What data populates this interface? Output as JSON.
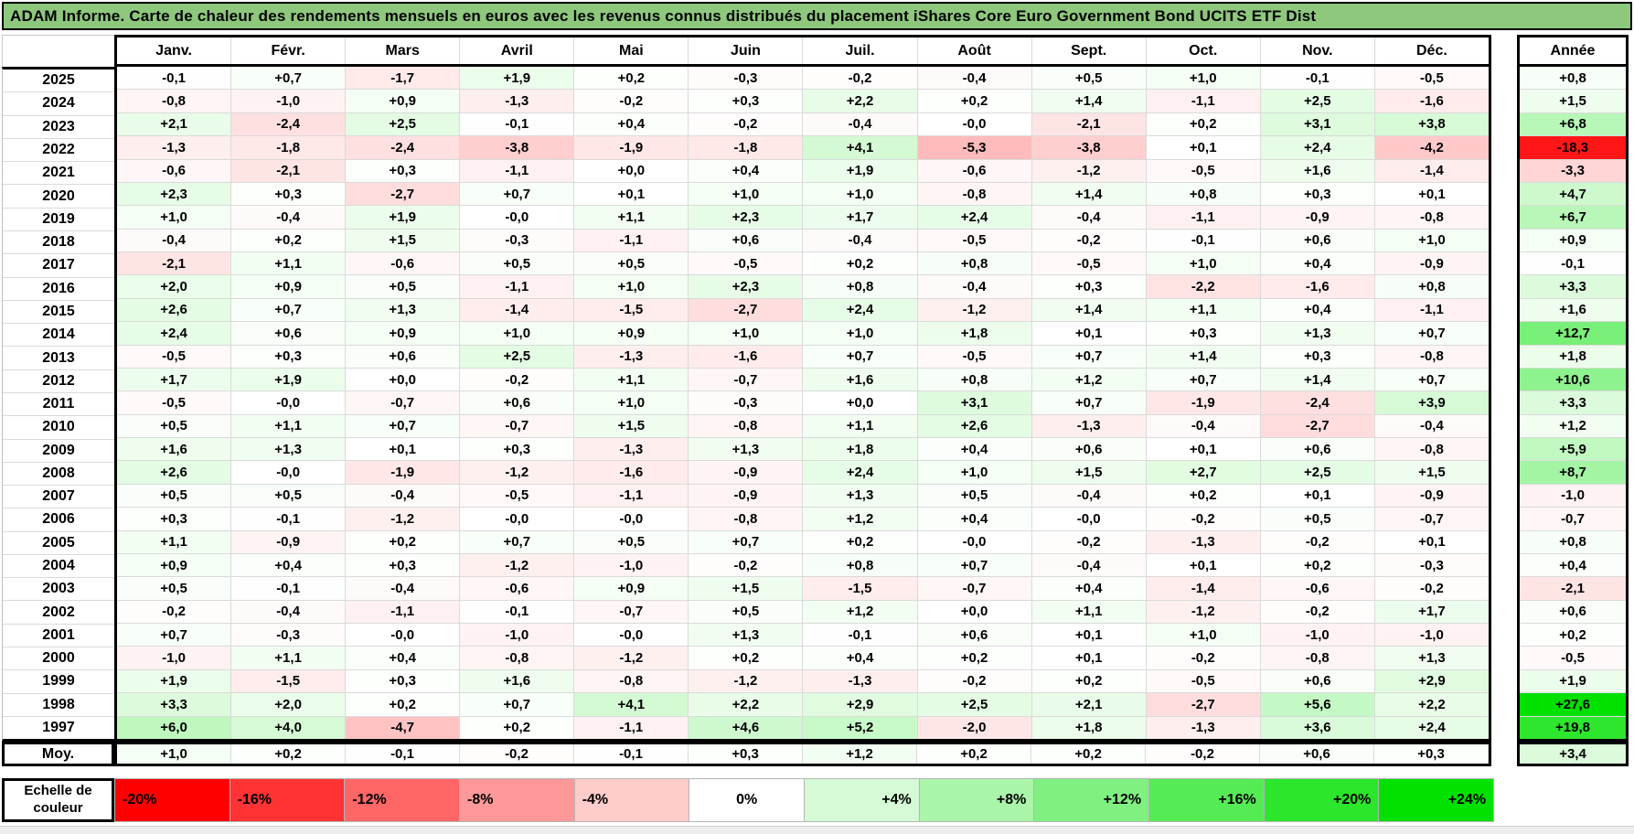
{
  "chart_data": {
    "type": "heatmap",
    "title": "ADAM Informe. Carte de chaleur des rendements mensuels en euros avec les revenus connus distribués du placement iShares Core Euro Government Bond UCITS ETF Dist",
    "unit": "percent, decimal comma",
    "columns": [
      "Janv.",
      "Févr.",
      "Mars",
      "Avril",
      "Mai",
      "Juin",
      "Juil.",
      "Août",
      "Sept.",
      "Oct.",
      "Nov.",
      "Déc."
    ],
    "annual_column": "Année",
    "rows": [
      {
        "year": "2025",
        "monthly": [
          "-0,1",
          "+0,7",
          "-1,7",
          "+1,9",
          "+0,2",
          "-0,3",
          "-0,2",
          "-0,4",
          "+0,5",
          "+1,0",
          "-0,1",
          "-0,5"
        ],
        "annual": "+0,8"
      },
      {
        "year": "2024",
        "monthly": [
          "-0,8",
          "-1,0",
          "+0,9",
          "-1,3",
          "-0,2",
          "+0,3",
          "+2,2",
          "+0,2",
          "+1,4",
          "-1,1",
          "+2,5",
          "-1,6"
        ],
        "annual": "+1,5"
      },
      {
        "year": "2023",
        "monthly": [
          "+2,1",
          "-2,4",
          "+2,5",
          "-0,1",
          "+0,4",
          "-0,2",
          "-0,4",
          "-0,0",
          "-2,1",
          "+0,2",
          "+3,1",
          "+3,8"
        ],
        "annual": "+6,8"
      },
      {
        "year": "2022",
        "monthly": [
          "-1,3",
          "-1,8",
          "-2,4",
          "-3,8",
          "-1,9",
          "-1,8",
          "+4,1",
          "-5,3",
          "-3,8",
          "+0,1",
          "+2,4",
          "-4,2"
        ],
        "annual": "-18,3"
      },
      {
        "year": "2021",
        "monthly": [
          "-0,6",
          "-2,1",
          "+0,3",
          "-1,1",
          "+0,0",
          "+0,4",
          "+1,9",
          "-0,6",
          "-1,2",
          "-0,5",
          "+1,6",
          "-1,4"
        ],
        "annual": "-3,3"
      },
      {
        "year": "2020",
        "monthly": [
          "+2,3",
          "+0,3",
          "-2,7",
          "+0,7",
          "+0,1",
          "+1,0",
          "+1,0",
          "-0,8",
          "+1,4",
          "+0,8",
          "+0,3",
          "+0,1"
        ],
        "annual": "+4,7"
      },
      {
        "year": "2019",
        "monthly": [
          "+1,0",
          "-0,4",
          "+1,9",
          "-0,0",
          "+1,1",
          "+2,3",
          "+1,7",
          "+2,4",
          "-0,4",
          "-1,1",
          "-0,9",
          "-0,8"
        ],
        "annual": "+6,7"
      },
      {
        "year": "2018",
        "monthly": [
          "-0,4",
          "+0,2",
          "+1,5",
          "-0,3",
          "-1,1",
          "+0,6",
          "-0,4",
          "-0,5",
          "-0,2",
          "-0,1",
          "+0,6",
          "+1,0"
        ],
        "annual": "+0,9"
      },
      {
        "year": "2017",
        "monthly": [
          "-2,1",
          "+1,1",
          "-0,6",
          "+0,5",
          "+0,5",
          "-0,5",
          "+0,2",
          "+0,8",
          "-0,5",
          "+1,0",
          "+0,4",
          "-0,9"
        ],
        "annual": "-0,1"
      },
      {
        "year": "2016",
        "monthly": [
          "+2,0",
          "+0,9",
          "+0,5",
          "-1,1",
          "+1,0",
          "+2,3",
          "+0,8",
          "-0,4",
          "+0,3",
          "-2,2",
          "-1,6",
          "+0,8"
        ],
        "annual": "+3,3"
      },
      {
        "year": "2015",
        "monthly": [
          "+2,6",
          "+0,7",
          "+1,3",
          "-1,4",
          "-1,5",
          "-2,7",
          "+2,4",
          "-1,2",
          "+1,4",
          "+1,1",
          "+0,4",
          "-1,1"
        ],
        "annual": "+1,6"
      },
      {
        "year": "2014",
        "monthly": [
          "+2,4",
          "+0,6",
          "+0,9",
          "+1,0",
          "+0,9",
          "+1,0",
          "+1,0",
          "+1,8",
          "+0,1",
          "+0,3",
          "+1,3",
          "+0,7"
        ],
        "annual": "+12,7"
      },
      {
        "year": "2013",
        "monthly": [
          "-0,5",
          "+0,3",
          "+0,6",
          "+2,5",
          "-1,3",
          "-1,6",
          "+0,7",
          "-0,5",
          "+0,7",
          "+1,4",
          "+0,3",
          "-0,8"
        ],
        "annual": "+1,8"
      },
      {
        "year": "2012",
        "monthly": [
          "+1,7",
          "+1,9",
          "+0,0",
          "-0,2",
          "+1,1",
          "-0,7",
          "+1,6",
          "+0,8",
          "+1,2",
          "+0,7",
          "+1,4",
          "+0,7"
        ],
        "annual": "+10,6"
      },
      {
        "year": "2011",
        "monthly": [
          "-0,5",
          "-0,0",
          "-0,7",
          "+0,6",
          "+1,0",
          "-0,3",
          "+0,0",
          "+3,1",
          "+0,7",
          "-1,9",
          "-2,4",
          "+3,9"
        ],
        "annual": "+3,3"
      },
      {
        "year": "2010",
        "monthly": [
          "+0,5",
          "+1,1",
          "+0,7",
          "-0,7",
          "+1,5",
          "-0,8",
          "+1,1",
          "+2,6",
          "-1,3",
          "-0,4",
          "-2,7",
          "-0,4"
        ],
        "annual": "+1,2"
      },
      {
        "year": "2009",
        "monthly": [
          "+1,6",
          "+1,3",
          "+0,1",
          "+0,3",
          "-1,3",
          "+1,3",
          "+1,8",
          "+0,4",
          "+0,6",
          "+0,1",
          "+0,6",
          "-0,8"
        ],
        "annual": "+5,9"
      },
      {
        "year": "2008",
        "monthly": [
          "+2,6",
          "-0,0",
          "-1,9",
          "-1,2",
          "-1,6",
          "-0,9",
          "+2,4",
          "+1,0",
          "+1,5",
          "+2,7",
          "+2,5",
          "+1,5"
        ],
        "annual": "+8,7"
      },
      {
        "year": "2007",
        "monthly": [
          "+0,5",
          "+0,5",
          "-0,4",
          "-0,5",
          "-1,1",
          "-0,9",
          "+1,3",
          "+0,5",
          "-0,4",
          "+0,2",
          "+0,1",
          "-0,9"
        ],
        "annual": "-1,0"
      },
      {
        "year": "2006",
        "monthly": [
          "+0,3",
          "-0,1",
          "-1,2",
          "-0,0",
          "-0,0",
          "-0,8",
          "+1,2",
          "+0,4",
          "-0,0",
          "-0,2",
          "+0,5",
          "-0,7"
        ],
        "annual": "-0,7"
      },
      {
        "year": "2005",
        "monthly": [
          "+1,1",
          "-0,9",
          "+0,2",
          "+0,7",
          "+0,5",
          "+0,7",
          "+0,2",
          "-0,0",
          "-0,2",
          "-1,3",
          "-0,2",
          "+0,1"
        ],
        "annual": "+0,8"
      },
      {
        "year": "2004",
        "monthly": [
          "+0,9",
          "+0,4",
          "+0,3",
          "-1,2",
          "-1,0",
          "-0,2",
          "+0,8",
          "+0,7",
          "-0,4",
          "+0,1",
          "+0,2",
          "-0,3"
        ],
        "annual": "+0,4"
      },
      {
        "year": "2003",
        "monthly": [
          "+0,5",
          "-0,1",
          "-0,4",
          "-0,6",
          "+0,9",
          "+1,5",
          "-1,5",
          "-0,7",
          "+0,4",
          "-1,4",
          "-0,6",
          "-0,2"
        ],
        "annual": "-2,1"
      },
      {
        "year": "2002",
        "monthly": [
          "-0,2",
          "-0,4",
          "-1,1",
          "-0,1",
          "-0,7",
          "+0,5",
          "+1,2",
          "+0,0",
          "+1,1",
          "-1,2",
          "-0,2",
          "+1,7"
        ],
        "annual": "+0,6"
      },
      {
        "year": "2001",
        "monthly": [
          "+0,7",
          "-0,3",
          "-0,0",
          "-1,0",
          "-0,0",
          "+1,3",
          "-0,1",
          "+0,6",
          "+0,1",
          "+1,0",
          "-1,0",
          "-1,0"
        ],
        "annual": "+0,2"
      },
      {
        "year": "2000",
        "monthly": [
          "-1,0",
          "+1,1",
          "+0,4",
          "-0,8",
          "-1,2",
          "+0,2",
          "+0,4",
          "+0,2",
          "+0,1",
          "-0,2",
          "-0,8",
          "+1,3"
        ],
        "annual": "-0,5"
      },
      {
        "year": "1999",
        "monthly": [
          "+1,9",
          "-1,5",
          "+0,3",
          "+1,6",
          "-0,8",
          "-1,2",
          "-1,3",
          "-0,2",
          "+0,2",
          "-0,5",
          "+0,6",
          "+2,9"
        ],
        "annual": "+1,9"
      },
      {
        "year": "1998",
        "monthly": [
          "+3,3",
          "+2,0",
          "+0,2",
          "+0,7",
          "+4,1",
          "+2,2",
          "+2,9",
          "+2,5",
          "+2,1",
          "-2,7",
          "+5,6",
          "+2,2"
        ],
        "annual": "+27,6"
      },
      {
        "year": "1997",
        "monthly": [
          "+6,0",
          "+4,0",
          "-4,7",
          "+0,2",
          "-1,1",
          "+4,6",
          "+5,2",
          "-2,0",
          "+1,8",
          "-1,3",
          "+3,6",
          "+2,4"
        ],
        "annual": "+19,8"
      }
    ],
    "average_row": {
      "label": "Moy.",
      "monthly": [
        "+1,0",
        "+0,2",
        "-0,1",
        "-0,2",
        "-0,1",
        "+0,3",
        "+1,2",
        "+0,2",
        "+0,2",
        "-0,2",
        "+0,6",
        "+0,3"
      ],
      "annual": "+3,4"
    },
    "color_scale": {
      "title": "Echelle de couleur",
      "labels": [
        "-20%",
        "-16%",
        "-12%",
        "-8%",
        "-4%",
        "0%",
        "+4%",
        "+8%",
        "+12%",
        "+16%",
        "+20%",
        "+24%"
      ],
      "negative_limit_pct": -20,
      "positive_limit_pct": 24,
      "negative_color": "#ff0000",
      "zero_color": "#ffffff",
      "positive_color": "#00e100"
    }
  },
  "colors": {
    "title_bar_background": "#8dc87c"
  }
}
